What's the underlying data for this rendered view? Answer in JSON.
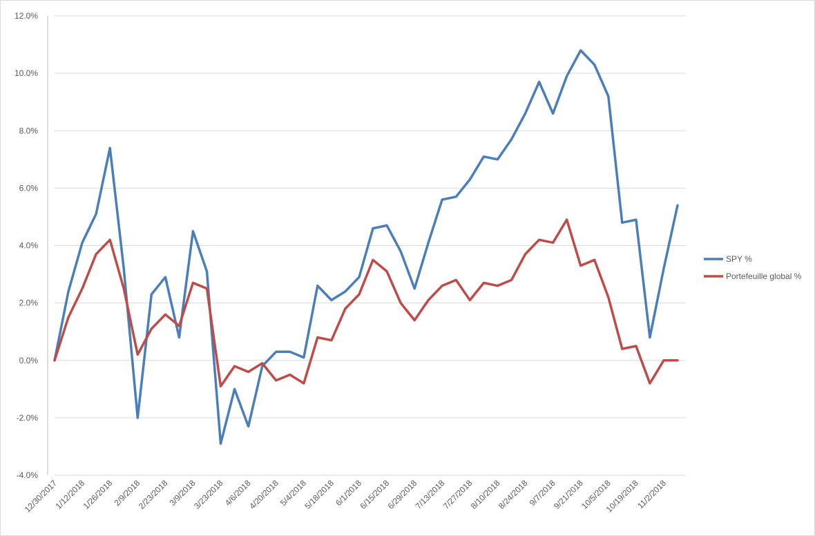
{
  "chart_data": {
    "type": "line",
    "title": "",
    "xlabel": "",
    "ylabel": "",
    "ylim": [
      -0.04,
      0.12
    ],
    "y_ticks": [
      -0.04,
      -0.02,
      0.0,
      0.02,
      0.04,
      0.06,
      0.08,
      0.1,
      0.12
    ],
    "y_tick_labels": [
      "-4.0%",
      "-2.0%",
      "0.0%",
      "2.0%",
      "4.0%",
      "6.0%",
      "8.0%",
      "10.0%",
      "12.0%"
    ],
    "x_tick_labels": [
      "12/30/2017",
      "1/12/2018",
      "1/26/2018",
      "2/9/2018",
      "2/23/2018",
      "3/9/2018",
      "3/23/2018",
      "4/6/2018",
      "4/20/2018",
      "5/4/2018",
      "5/18/2018",
      "6/1/2018",
      "6/15/2018",
      "6/29/2018",
      "7/13/2018",
      "7/27/2018",
      "8/10/2018",
      "8/24/2018",
      "9/7/2018",
      "9/21/2018",
      "10/5/2018",
      "10/19/2018",
      "11/2/2018"
    ],
    "grid": true,
    "legend_position": "right",
    "series": [
      {
        "name": "SPY %",
        "color": "#4a7ebb",
        "values": [
          0.0,
          0.024,
          0.041,
          0.051,
          0.074,
          0.032,
          -0.02,
          0.023,
          0.029,
          0.008,
          0.045,
          0.031,
          -0.029,
          -0.01,
          -0.023,
          -0.002,
          0.003,
          0.003,
          0.001,
          0.026,
          0.021,
          0.024,
          0.029,
          0.046,
          0.047,
          0.038,
          0.025,
          0.041,
          0.056,
          0.057,
          0.063,
          0.071,
          0.07,
          0.077,
          0.086,
          0.097,
          0.086,
          0.099,
          0.108,
          0.103,
          0.092,
          0.048,
          0.049,
          0.008,
          0.032,
          0.054
        ]
      },
      {
        "name": "Portefeuille global %",
        "color": "#be4b48",
        "values": [
          0.0,
          0.015,
          0.025,
          0.037,
          0.042,
          0.025,
          0.002,
          0.011,
          0.016,
          0.012,
          0.027,
          0.025,
          -0.009,
          -0.002,
          -0.004,
          -0.001,
          -0.007,
          -0.005,
          -0.008,
          0.008,
          0.007,
          0.018,
          0.023,
          0.035,
          0.031,
          0.02,
          0.014,
          0.021,
          0.026,
          0.028,
          0.021,
          0.027,
          0.026,
          0.028,
          0.037,
          0.042,
          0.041,
          0.049,
          0.033,
          0.035,
          0.022,
          0.004,
          0.005,
          -0.008,
          0.0,
          0.0
        ]
      }
    ]
  }
}
